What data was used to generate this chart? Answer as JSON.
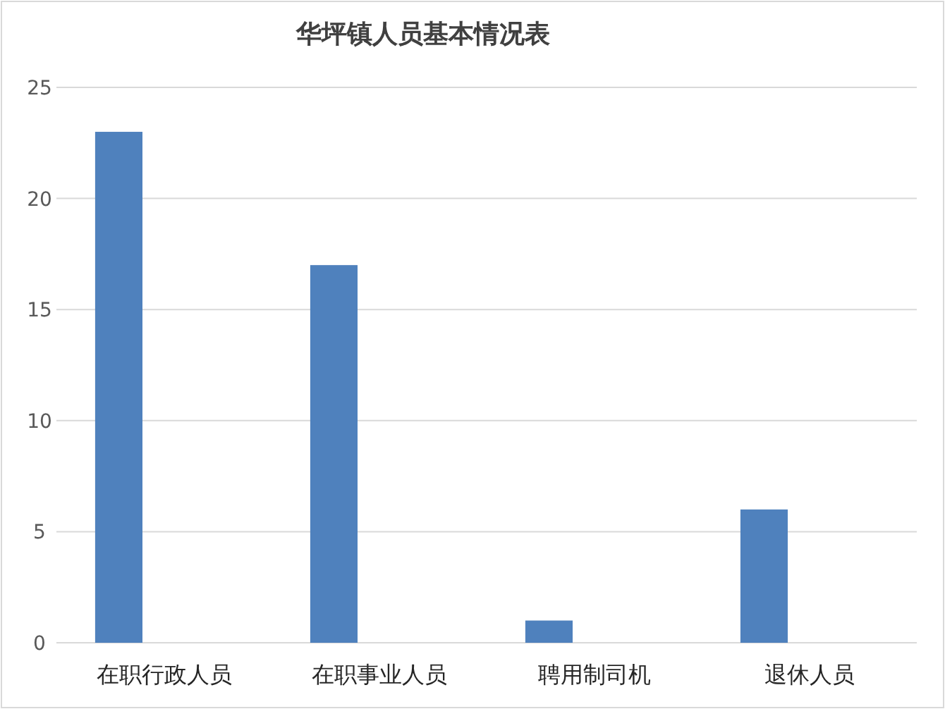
{
  "chart_data": {
    "type": "bar",
    "title": "华坪镇人员基本情况表",
    "categories": [
      "在职行政人员",
      "在职事业人员",
      "聘用制司机",
      "退休人员"
    ],
    "values": [
      23,
      17,
      1,
      6
    ],
    "color": "#4f81bd",
    "ylim": [
      0,
      25
    ],
    "yticks": [
      0,
      5,
      10,
      15,
      20,
      25
    ],
    "grid": "y"
  }
}
